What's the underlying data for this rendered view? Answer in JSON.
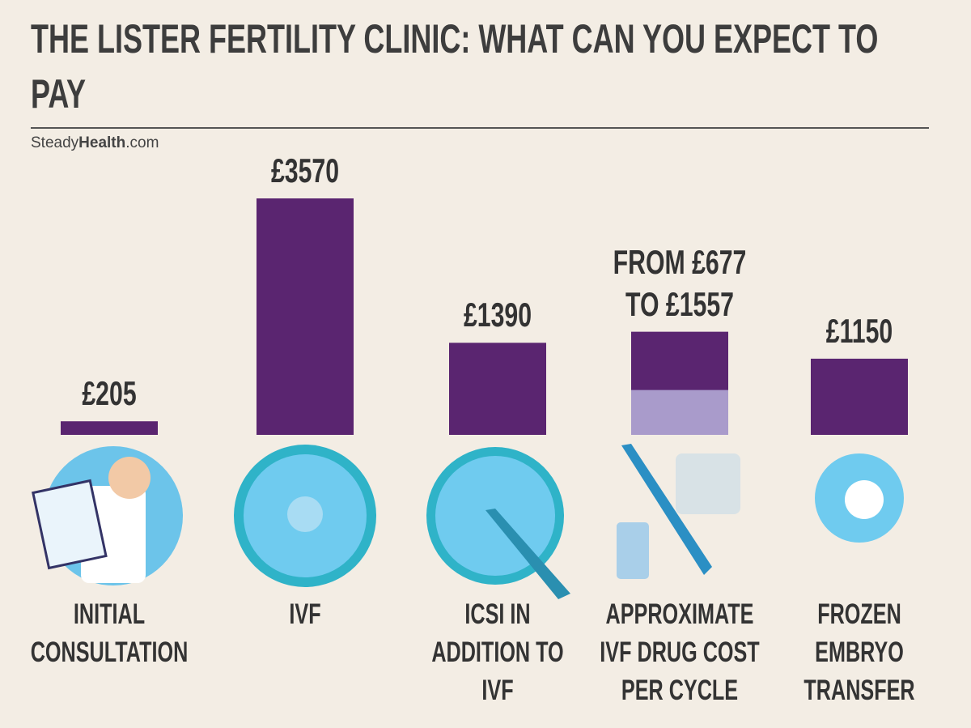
{
  "chart_data": {
    "type": "bar",
    "title": "THE LISTER FERTILITY CLINIC: WHAT CAN YOU EXPECT TO PAY",
    "source": [
      "Steady",
      "Health",
      ".com"
    ],
    "categories": [
      "INITIAL CONSULTATION",
      "IVF",
      "ICSI IN ADDITION TO IVF",
      "APPROXIMATE IVF DRUG COST PER CYCLE",
      "FROZEN EMBRYO TRANSFER"
    ],
    "values": [
      205,
      3570,
      1390,
      1557,
      1150
    ],
    "value_labels": [
      "£205",
      "£3570",
      "£1390",
      "FROM £677 TO £1557",
      "£1150"
    ],
    "range_low": [
      null,
      null,
      null,
      677,
      null
    ],
    "color": "#5a2570",
    "range_low_color": "#a99bcb"
  }
}
